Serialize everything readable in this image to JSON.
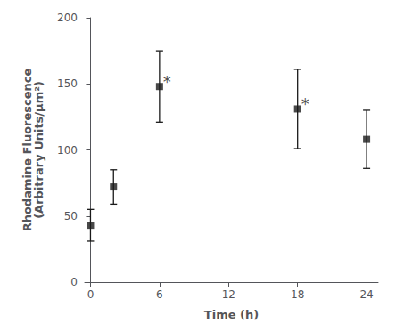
{
  "chart_data": {
    "type": "scatter",
    "x": [
      0,
      2,
      6,
      18,
      24
    ],
    "values": [
      43,
      72,
      148,
      131,
      108
    ],
    "yerr_lower": [
      12,
      13,
      27,
      30,
      22
    ],
    "yerr_upper": [
      12,
      13,
      27,
      30,
      22
    ],
    "annotations": [
      {
        "text": "*",
        "x": 6,
        "y": 152
      },
      {
        "text": "*",
        "x": 18,
        "y": 135
      }
    ],
    "xlabel": "Time (h)",
    "ylabel": "Rhodamine Fluorescence\n(Arbitrary Units/μm²)",
    "xlim": [
      -0.5,
      25
    ],
    "ylim": [
      0,
      200
    ],
    "xticks": [
      0,
      6,
      12,
      18,
      24
    ],
    "yticks": [
      0,
      50,
      100,
      150,
      200
    ],
    "color": "#1a1a1a",
    "marker": "square",
    "grid": false
  }
}
